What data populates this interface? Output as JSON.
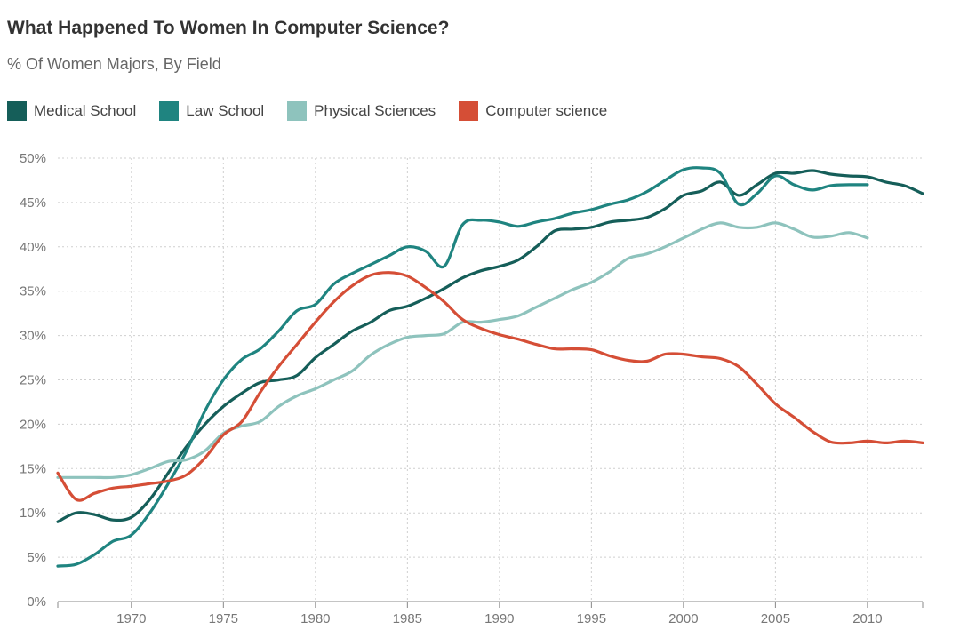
{
  "header": {
    "title": "What Happened To Women In Computer Science?",
    "subtitle": "% Of Women Majors, By Field"
  },
  "chart_data": {
    "type": "line",
    "title": "What Happened To Women In Computer Science?",
    "subtitle": "% Of Women Majors, By Field",
    "xlabel": "",
    "ylabel": "",
    "xlim": [
      1966,
      2013
    ],
    "ylim": [
      0,
      50
    ],
    "x_ticks": [
      1970,
      1975,
      1980,
      1985,
      1990,
      1995,
      2000,
      2005,
      2010
    ],
    "y_ticks": [
      0,
      5,
      10,
      15,
      20,
      25,
      30,
      35,
      40,
      45,
      50
    ],
    "y_tick_labels": [
      "0%",
      "5%",
      "10%",
      "15%",
      "20%",
      "25%",
      "30%",
      "35%",
      "40%",
      "45%",
      "50%"
    ],
    "grid": true,
    "legend_position": "top-left",
    "series": [
      {
        "name": "Medical School",
        "color": "#155e59",
        "points": [
          [
            1966,
            9
          ],
          [
            1967,
            10
          ],
          [
            1968,
            9.8
          ],
          [
            1969,
            9.2
          ],
          [
            1970,
            9.5
          ],
          [
            1971,
            11.5
          ],
          [
            1972,
            14.5
          ],
          [
            1973,
            17.5
          ],
          [
            1974,
            20
          ],
          [
            1975,
            22
          ],
          [
            1976,
            23.5
          ],
          [
            1977,
            24.7
          ],
          [
            1978,
            25
          ],
          [
            1979,
            25.5
          ],
          [
            1980,
            27.5
          ],
          [
            1981,
            29
          ],
          [
            1982,
            30.5
          ],
          [
            1983,
            31.5
          ],
          [
            1984,
            32.8
          ],
          [
            1985,
            33.3
          ],
          [
            1986,
            34.2
          ],
          [
            1987,
            35.3
          ],
          [
            1988,
            36.5
          ],
          [
            1989,
            37.3
          ],
          [
            1990,
            37.8
          ],
          [
            1991,
            38.5
          ],
          [
            1992,
            40
          ],
          [
            1993,
            41.8
          ],
          [
            1994,
            42
          ],
          [
            1995,
            42.2
          ],
          [
            1996,
            42.8
          ],
          [
            1997,
            43
          ],
          [
            1998,
            43.3
          ],
          [
            1999,
            44.3
          ],
          [
            2000,
            45.8
          ],
          [
            2001,
            46.3
          ],
          [
            2002,
            47.3
          ],
          [
            2003,
            45.8
          ],
          [
            2004,
            47
          ],
          [
            2005,
            48.3
          ],
          [
            2006,
            48.3
          ],
          [
            2007,
            48.6
          ],
          [
            2008,
            48.2
          ],
          [
            2009,
            48
          ],
          [
            2010,
            47.9
          ],
          [
            2011,
            47.3
          ],
          [
            2012,
            46.9
          ],
          [
            2013,
            46
          ]
        ]
      },
      {
        "name": "Law School",
        "color": "#1f8480",
        "points": [
          [
            1966,
            4
          ],
          [
            1967,
            4.2
          ],
          [
            1968,
            5.3
          ],
          [
            1969,
            6.8
          ],
          [
            1970,
            7.5
          ],
          [
            1971,
            10
          ],
          [
            1972,
            13.3
          ],
          [
            1973,
            17
          ],
          [
            1974,
            21.5
          ],
          [
            1975,
            25
          ],
          [
            1976,
            27.3
          ],
          [
            1977,
            28.5
          ],
          [
            1978,
            30.5
          ],
          [
            1979,
            32.8
          ],
          [
            1980,
            33.5
          ],
          [
            1981,
            35.8
          ],
          [
            1982,
            37
          ],
          [
            1983,
            38
          ],
          [
            1984,
            39
          ],
          [
            1985,
            40
          ],
          [
            1986,
            39.5
          ],
          [
            1987,
            37.8
          ],
          [
            1988,
            42.5
          ],
          [
            1989,
            43
          ],
          [
            1990,
            42.8
          ],
          [
            1991,
            42.3
          ],
          [
            1992,
            42.8
          ],
          [
            1993,
            43.2
          ],
          [
            1994,
            43.8
          ],
          [
            1995,
            44.2
          ],
          [
            1996,
            44.8
          ],
          [
            1997,
            45.3
          ],
          [
            1998,
            46.2
          ],
          [
            1999,
            47.5
          ],
          [
            2000,
            48.7
          ],
          [
            2001,
            48.9
          ],
          [
            2002,
            48.3
          ],
          [
            2003,
            44.8
          ],
          [
            2004,
            46
          ],
          [
            2005,
            48
          ],
          [
            2006,
            47
          ],
          [
            2007,
            46.4
          ],
          [
            2008,
            46.9
          ],
          [
            2009,
            47
          ],
          [
            2010,
            47
          ]
        ]
      },
      {
        "name": "Physical Sciences",
        "color": "#8ec3bd",
        "points": [
          [
            1966,
            14
          ],
          [
            1967,
            14
          ],
          [
            1968,
            14
          ],
          [
            1969,
            14
          ],
          [
            1970,
            14.3
          ],
          [
            1971,
            15
          ],
          [
            1972,
            15.8
          ],
          [
            1973,
            16
          ],
          [
            1974,
            17
          ],
          [
            1975,
            19
          ],
          [
            1976,
            19.8
          ],
          [
            1977,
            20.3
          ],
          [
            1978,
            22
          ],
          [
            1979,
            23.2
          ],
          [
            1980,
            24
          ],
          [
            1981,
            25
          ],
          [
            1982,
            26
          ],
          [
            1983,
            27.8
          ],
          [
            1984,
            29
          ],
          [
            1985,
            29.8
          ],
          [
            1986,
            30
          ],
          [
            1987,
            30.2
          ],
          [
            1988,
            31.5
          ],
          [
            1989,
            31.5
          ],
          [
            1990,
            31.8
          ],
          [
            1991,
            32.2
          ],
          [
            1992,
            33.2
          ],
          [
            1993,
            34.2
          ],
          [
            1994,
            35.2
          ],
          [
            1995,
            36
          ],
          [
            1996,
            37.2
          ],
          [
            1997,
            38.7
          ],
          [
            1998,
            39.2
          ],
          [
            1999,
            40
          ],
          [
            2000,
            41
          ],
          [
            2001,
            42
          ],
          [
            2002,
            42.7
          ],
          [
            2003,
            42.2
          ],
          [
            2004,
            42.2
          ],
          [
            2005,
            42.7
          ],
          [
            2006,
            42
          ],
          [
            2007,
            41.1
          ],
          [
            2008,
            41.2
          ],
          [
            2009,
            41.6
          ],
          [
            2010,
            41
          ]
        ]
      },
      {
        "name": "Computer science",
        "color": "#d54e36",
        "points": [
          [
            1966,
            14.5
          ],
          [
            1967,
            11.5
          ],
          [
            1968,
            12.2
          ],
          [
            1969,
            12.8
          ],
          [
            1970,
            13
          ],
          [
            1971,
            13.3
          ],
          [
            1972,
            13.6
          ],
          [
            1973,
            14.3
          ],
          [
            1974,
            16.2
          ],
          [
            1975,
            18.8
          ],
          [
            1976,
            20.3
          ],
          [
            1977,
            23.6
          ],
          [
            1978,
            26.5
          ],
          [
            1979,
            29
          ],
          [
            1980,
            31.5
          ],
          [
            1981,
            33.8
          ],
          [
            1982,
            35.6
          ],
          [
            1983,
            36.8
          ],
          [
            1984,
            37.1
          ],
          [
            1985,
            36.7
          ],
          [
            1986,
            35.4
          ],
          [
            1987,
            33.8
          ],
          [
            1988,
            31.8
          ],
          [
            1989,
            30.8
          ],
          [
            1990,
            30.1
          ],
          [
            1991,
            29.6
          ],
          [
            1992,
            29
          ],
          [
            1993,
            28.5
          ],
          [
            1994,
            28.5
          ],
          [
            1995,
            28.4
          ],
          [
            1996,
            27.7
          ],
          [
            1997,
            27.2
          ],
          [
            1998,
            27.1
          ],
          [
            1999,
            27.9
          ],
          [
            2000,
            27.9
          ],
          [
            2001,
            27.6
          ],
          [
            2002,
            27.4
          ],
          [
            2003,
            26.5
          ],
          [
            2004,
            24.5
          ],
          [
            2005,
            22.3
          ],
          [
            2006,
            20.8
          ],
          [
            2007,
            19.2
          ],
          [
            2008,
            18
          ],
          [
            2009,
            17.9
          ],
          [
            2010,
            18.1
          ],
          [
            2011,
            17.9
          ],
          [
            2012,
            18.1
          ],
          [
            2013,
            17.9
          ]
        ]
      }
    ]
  }
}
